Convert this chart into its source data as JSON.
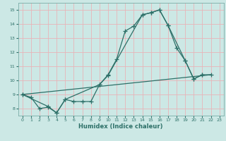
{
  "xlabel": "Humidex (Indice chaleur)",
  "bg_color": "#cce8e5",
  "line_color": "#2d7068",
  "grid_color": "#e8b4b8",
  "xlim": [
    -0.5,
    23.5
  ],
  "ylim": [
    7.5,
    15.5
  ],
  "xticks": [
    0,
    1,
    2,
    3,
    4,
    5,
    6,
    7,
    8,
    9,
    10,
    11,
    12,
    13,
    14,
    15,
    16,
    17,
    18,
    19,
    20,
    21,
    22,
    23
  ],
  "yticks": [
    8,
    9,
    10,
    11,
    12,
    13,
    14,
    15
  ],
  "line1_x": [
    0,
    1,
    2,
    3,
    4,
    5,
    6,
    7,
    8,
    9,
    10,
    11,
    12,
    13,
    14,
    15,
    16,
    17,
    18,
    19,
    20,
    21
  ],
  "line1_y": [
    9.0,
    8.8,
    8.0,
    8.1,
    7.7,
    8.65,
    8.5,
    8.5,
    8.5,
    9.7,
    10.4,
    11.5,
    13.5,
    13.85,
    14.65,
    14.8,
    15.0,
    13.9,
    12.3,
    11.4,
    10.1,
    10.4
  ],
  "line2_x": [
    0,
    22
  ],
  "line2_y": [
    9.0,
    10.4
  ],
  "line3_x": [
    0,
    3,
    4,
    5,
    9,
    10,
    14,
    15,
    16,
    17,
    19,
    20,
    21,
    22
  ],
  "line3_y": [
    9.0,
    8.15,
    7.7,
    8.65,
    9.7,
    10.35,
    14.65,
    14.8,
    15.0,
    13.9,
    11.4,
    10.1,
    10.4,
    10.4
  ]
}
